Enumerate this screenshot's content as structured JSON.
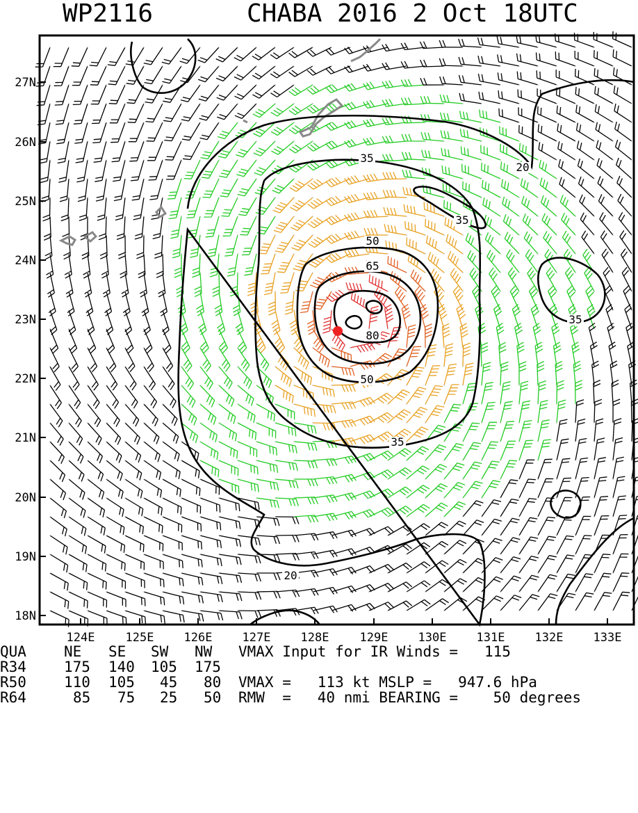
{
  "header": {
    "storm_id": "WP2116",
    "storm_title": "CHABA 2016  2 Oct 18UTC"
  },
  "map": {
    "lat_labels": [
      "27N",
      "26N",
      "25N",
      "24N",
      "23N",
      "22N",
      "21N",
      "20N",
      "19N",
      "18N"
    ],
    "lon_labels": [
      "124E",
      "125E",
      "126E",
      "127E",
      "128E",
      "129E",
      "130E",
      "131E",
      "132E",
      "133E"
    ],
    "contour_labels": [
      "20",
      "35",
      "50",
      "65",
      "80",
      "50",
      "35",
      "35",
      "35",
      "20"
    ],
    "barb_colors": {
      "below_35kt": "#000000",
      "35_to_50kt": "#22cc22",
      "50_to_65kt": "#e8a020",
      "65_to_80kt": "#e06020",
      "above_80kt": "#e03030"
    },
    "center_marker_color": "#ee2222",
    "coastline_color": "#888888"
  },
  "table": {
    "header": [
      "QUA",
      "NE",
      "SE",
      "SW",
      "NW"
    ],
    "rows": [
      {
        "label": "R34",
        "ne": "175",
        "se": "140",
        "sw": "105",
        "nw": "175"
      },
      {
        "label": "R50",
        "ne": "110",
        "se": "105",
        "sw": "45",
        "nw": "80"
      },
      {
        "label": "R64",
        "ne": "85",
        "se": "75",
        "sw": "25",
        "nw": "50"
      }
    ],
    "info": [
      "VMAX Input for IR Winds =   115",
      "",
      "VMAX =   113 kt MSLP =   947.6 hPa",
      "RMW  =   40 nmi BEARING =    50 degrees"
    ]
  }
}
